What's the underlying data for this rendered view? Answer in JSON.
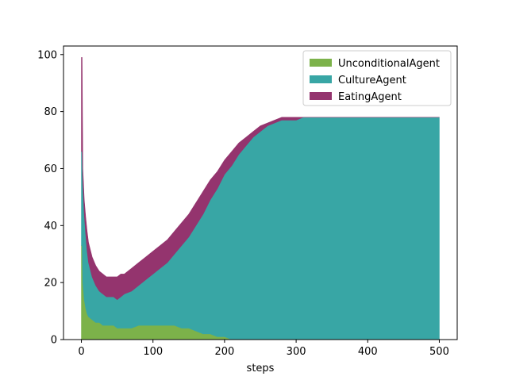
{
  "chart_data": {
    "type": "area",
    "stacked": true,
    "title": "",
    "xlabel": "steps",
    "ylabel": "",
    "xlim": [
      -25,
      525
    ],
    "ylim": [
      0,
      103
    ],
    "xticks": [
      0,
      100,
      200,
      300,
      400,
      500
    ],
    "yticks": [
      0,
      20,
      40,
      60,
      80,
      100
    ],
    "grid": false,
    "legend_position": "top-right",
    "x": [
      0,
      1,
      2,
      4,
      6,
      8,
      10,
      15,
      20,
      25,
      30,
      35,
      40,
      45,
      50,
      55,
      60,
      70,
      80,
      90,
      100,
      110,
      120,
      130,
      140,
      150,
      160,
      170,
      180,
      190,
      200,
      210,
      220,
      230,
      240,
      250,
      260,
      270,
      280,
      290,
      300,
      310,
      320,
      350,
      370,
      380,
      400,
      450,
      500
    ],
    "series": [
      {
        "name": "UnconditionalAgent",
        "color": "#7cb24a",
        "values": [
          33,
          33,
          20,
          14,
          11,
          9,
          8,
          7,
          6,
          6,
          5,
          5,
          5,
          5,
          4,
          4,
          4,
          4,
          5,
          5,
          5,
          5,
          5,
          5,
          4,
          4,
          3,
          2,
          2,
          1,
          1,
          0,
          0,
          0,
          0,
          0,
          0,
          0,
          0,
          0,
          0,
          0,
          0,
          0,
          0,
          0,
          0,
          0,
          0
        ]
      },
      {
        "name": "CultureAgent",
        "color": "#38a6a5",
        "values": [
          33,
          33,
          35,
          30,
          26,
          22,
          19,
          15,
          13,
          11,
          11,
          10,
          10,
          10,
          10,
          11,
          12,
          13,
          14,
          16,
          18,
          20,
          22,
          25,
          29,
          32,
          37,
          42,
          47,
          52,
          57,
          61,
          65,
          68,
          71,
          73,
          75,
          76,
          77,
          77,
          77,
          78,
          78,
          78,
          78,
          78,
          78,
          78,
          78
        ]
      },
      {
        "name": "EatingAgent",
        "color": "#94346e",
        "values": [
          33,
          33,
          5,
          5,
          6,
          7,
          7,
          7,
          7,
          7,
          7,
          7,
          7,
          7,
          8,
          8,
          7,
          8,
          8,
          8,
          8,
          8,
          8,
          8,
          8,
          8,
          8,
          8,
          7,
          6,
          5,
          5,
          4,
          3,
          2,
          2,
          1,
          1,
          1,
          1,
          1,
          0,
          0,
          0,
          0,
          0,
          0,
          0,
          0
        ]
      }
    ]
  }
}
